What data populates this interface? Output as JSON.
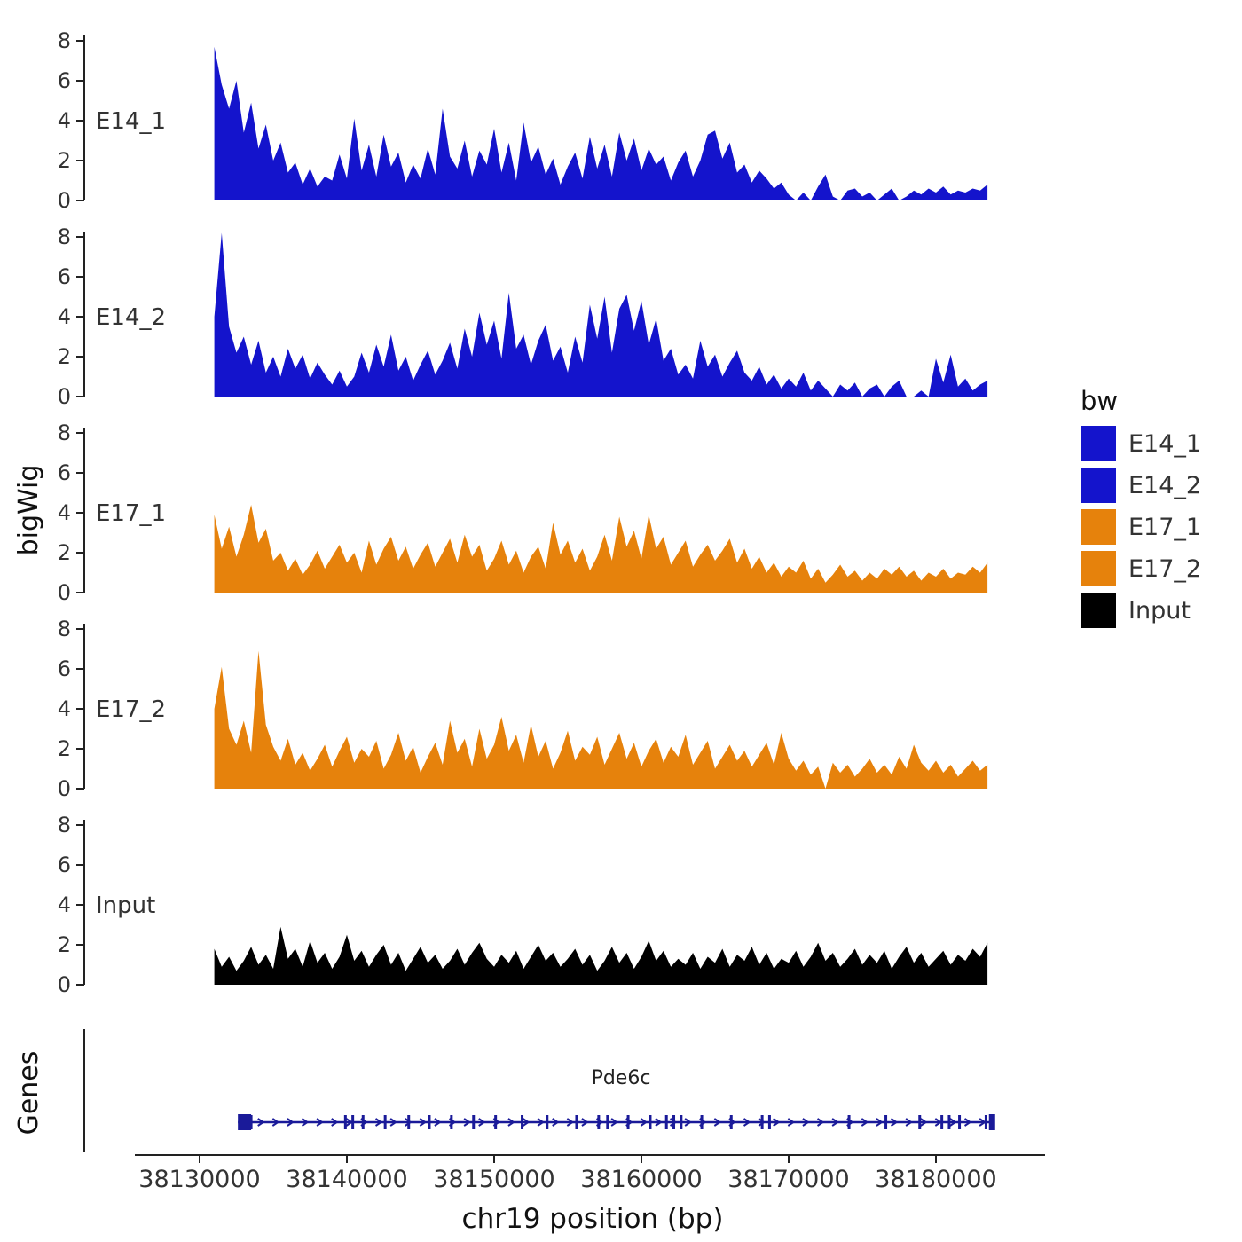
{
  "figure": {
    "ylabel": "bigWig",
    "genes_label": "Genes",
    "xlabel": "chr19 position (bp)",
    "legend_title": "bw",
    "gene_name": "Pde6c"
  },
  "colors": {
    "blue": "#1414CC",
    "orange": "#E6820C",
    "black": "#000000",
    "gene": "#1A1A99",
    "axis": "#222222",
    "tick_text": "#333333"
  },
  "chart_data": {
    "type": "area",
    "title": "",
    "xlabel": "chr19 position (bp)",
    "ylabel": "bigWig",
    "x_start": 38131000,
    "x_step": 500,
    "xlim": [
      38126000,
      38187000
    ],
    "ylim": [
      0,
      8.5
    ],
    "y_ticks": [
      0,
      2,
      4,
      6,
      8
    ],
    "x_ticks": [
      38130000,
      38140000,
      38150000,
      38160000,
      38170000,
      38180000
    ],
    "legend_position": "right",
    "grid": false,
    "series": [
      {
        "name": "E14_1",
        "color": "#1414CC",
        "values": [
          7.7,
          5.8,
          4.6,
          6.0,
          3.4,
          4.9,
          2.6,
          3.8,
          2.0,
          2.9,
          1.4,
          1.9,
          0.8,
          1.6,
          0.7,
          1.2,
          1.0,
          2.3,
          1.1,
          4.1,
          1.5,
          2.8,
          1.2,
          3.3,
          1.7,
          2.4,
          0.9,
          1.8,
          1.1,
          2.6,
          1.3,
          4.6,
          2.2,
          1.6,
          3.0,
          1.2,
          2.5,
          1.8,
          3.6,
          1.4,
          2.9,
          1.0,
          3.9,
          1.9,
          2.7,
          1.3,
          2.1,
          0.8,
          1.7,
          2.4,
          1.1,
          3.2,
          1.6,
          2.8,
          1.2,
          3.4,
          2.0,
          3.1,
          1.5,
          2.6,
          1.8,
          2.2,
          1.0,
          1.9,
          2.5,
          1.2,
          2.0,
          3.3,
          3.5,
          2.1,
          2.9,
          1.4,
          1.8,
          0.9,
          1.5,
          1.1,
          0.6,
          0.9,
          0.3,
          0.0,
          0.4,
          0.0,
          0.7,
          1.3,
          0.2,
          0.0,
          0.5,
          0.6,
          0.2,
          0.4,
          0.0,
          0.3,
          0.6,
          0.0,
          0.2,
          0.5,
          0.3,
          0.6,
          0.4,
          0.7,
          0.3,
          0.5,
          0.4,
          0.6,
          0.5,
          0.8
        ]
      },
      {
        "name": "E14_2",
        "color": "#1414CC",
        "values": [
          4.0,
          8.2,
          3.5,
          2.2,
          3.0,
          1.6,
          2.8,
          1.2,
          2.0,
          1.0,
          2.4,
          1.4,
          2.1,
          0.9,
          1.7,
          1.1,
          0.6,
          1.3,
          0.5,
          1.0,
          2.2,
          1.2,
          2.6,
          1.5,
          3.1,
          1.3,
          2.0,
          0.8,
          1.6,
          2.3,
          1.1,
          1.8,
          2.7,
          1.4,
          3.4,
          2.0,
          4.2,
          2.6,
          3.8,
          1.9,
          5.2,
          2.4,
          3.1,
          1.6,
          2.8,
          3.6,
          1.8,
          2.5,
          1.2,
          3.0,
          1.7,
          4.6,
          2.9,
          5.0,
          2.2,
          4.4,
          5.1,
          3.3,
          4.8,
          2.6,
          3.9,
          1.8,
          2.4,
          1.1,
          1.6,
          0.9,
          2.8,
          1.5,
          2.1,
          1.0,
          1.7,
          2.3,
          1.2,
          0.8,
          1.5,
          0.6,
          1.1,
          0.4,
          0.9,
          0.5,
          1.2,
          0.3,
          0.8,
          0.4,
          0.0,
          0.6,
          0.3,
          0.7,
          0.0,
          0.4,
          0.6,
          0.0,
          0.5,
          0.8,
          0.0,
          0.0,
          0.3,
          0.0,
          1.9,
          0.7,
          2.1,
          0.5,
          0.9,
          0.3,
          0.6,
          0.8
        ]
      },
      {
        "name": "E17_1",
        "color": "#E6820C",
        "values": [
          3.9,
          2.2,
          3.3,
          1.8,
          2.9,
          4.4,
          2.5,
          3.2,
          1.6,
          2.0,
          1.1,
          1.7,
          0.9,
          1.4,
          2.1,
          1.2,
          1.8,
          2.4,
          1.5,
          2.0,
          1.0,
          2.6,
          1.4,
          2.2,
          2.8,
          1.6,
          2.3,
          1.2,
          1.9,
          2.5,
          1.3,
          2.0,
          2.7,
          1.5,
          2.9,
          1.8,
          2.4,
          1.1,
          1.7,
          2.6,
          1.4,
          2.1,
          1.0,
          1.8,
          2.3,
          1.2,
          3.5,
          1.9,
          2.6,
          1.5,
          2.2,
          1.1,
          1.8,
          2.9,
          1.6,
          3.8,
          2.3,
          3.1,
          1.7,
          3.9,
          2.2,
          2.8,
          1.4,
          2.0,
          2.6,
          1.3,
          1.9,
          2.4,
          1.6,
          2.1,
          2.7,
          1.5,
          2.2,
          1.2,
          1.8,
          1.0,
          1.5,
          0.8,
          1.3,
          1.0,
          1.6,
          0.7,
          1.2,
          0.5,
          0.9,
          1.4,
          0.8,
          1.1,
          0.6,
          1.0,
          0.7,
          1.2,
          0.9,
          1.3,
          0.8,
          1.1,
          0.6,
          1.0,
          0.8,
          1.2,
          0.7,
          1.0,
          0.9,
          1.3,
          1.0,
          1.5
        ]
      },
      {
        "name": "E17_2",
        "color": "#E6820C",
        "values": [
          4.0,
          6.1,
          3.0,
          2.2,
          3.4,
          1.8,
          6.9,
          3.2,
          2.1,
          1.4,
          2.5,
          1.2,
          1.8,
          0.9,
          1.5,
          2.2,
          1.1,
          1.9,
          2.6,
          1.3,
          2.0,
          1.6,
          2.4,
          1.0,
          1.7,
          2.8,
          1.4,
          2.1,
          0.8,
          1.6,
          2.3,
          1.2,
          3.4,
          1.8,
          2.5,
          1.1,
          3.0,
          1.5,
          2.2,
          3.6,
          1.9,
          2.7,
          1.3,
          3.2,
          1.6,
          2.4,
          1.0,
          1.8,
          2.9,
          1.4,
          2.1,
          1.7,
          2.6,
          1.2,
          2.0,
          2.8,
          1.5,
          2.3,
          1.1,
          1.9,
          2.5,
          1.3,
          2.1,
          1.6,
          2.7,
          1.2,
          1.8,
          2.4,
          1.0,
          1.6,
          2.2,
          1.4,
          1.9,
          1.1,
          1.7,
          2.3,
          1.2,
          2.8,
          1.5,
          0.9,
          1.4,
          0.7,
          1.1,
          0.0,
          1.3,
          0.8,
          1.2,
          0.6,
          1.0,
          1.5,
          0.8,
          1.2,
          0.7,
          1.6,
          1.0,
          2.2,
          1.3,
          0.9,
          1.4,
          0.8,
          1.2,
          0.6,
          1.0,
          1.4,
          0.9,
          1.2
        ]
      },
      {
        "name": "Input",
        "color": "#000000",
        "values": [
          1.8,
          0.9,
          1.4,
          0.7,
          1.2,
          1.9,
          1.0,
          1.5,
          0.8,
          2.9,
          1.3,
          1.8,
          0.9,
          2.2,
          1.1,
          1.6,
          0.8,
          1.4,
          2.5,
          1.2,
          1.7,
          0.9,
          1.5,
          2.0,
          1.0,
          1.6,
          0.7,
          1.3,
          1.9,
          1.1,
          1.5,
          0.8,
          1.2,
          1.8,
          1.0,
          1.6,
          2.1,
          1.3,
          0.9,
          1.5,
          1.1,
          1.7,
          0.8,
          1.4,
          2.0,
          1.2,
          1.6,
          0.9,
          1.3,
          1.8,
          1.0,
          1.5,
          0.7,
          1.2,
          1.9,
          1.1,
          1.6,
          0.8,
          1.4,
          2.2,
          1.2,
          1.7,
          0.9,
          1.3,
          1.0,
          1.6,
          0.8,
          1.4,
          1.1,
          1.8,
          0.9,
          1.5,
          1.2,
          1.9,
          1.0,
          1.6,
          0.8,
          1.3,
          1.1,
          1.7,
          0.9,
          1.4,
          2.1,
          1.2,
          1.6,
          0.9,
          1.3,
          1.8,
          1.0,
          1.5,
          1.1,
          1.7,
          0.8,
          1.4,
          1.9,
          1.1,
          1.6,
          0.9,
          1.3,
          1.7,
          1.0,
          1.5,
          1.2,
          1.8,
          1.4,
          2.1
        ]
      }
    ],
    "legend_entries": [
      {
        "label": "E14_1",
        "color": "#1414CC"
      },
      {
        "label": "E14_2",
        "color": "#1414CC"
      },
      {
        "label": "E17_1",
        "color": "#E6820C"
      },
      {
        "label": "E17_2",
        "color": "#E6820C"
      },
      {
        "label": "Input",
        "color": "#000000"
      }
    ],
    "gene_track": {
      "name": "Pde6c",
      "start": 38132600,
      "end": 38184000,
      "strand": "+",
      "first_exon": {
        "start": 38132600,
        "end": 38133500
      },
      "last_exon": {
        "start": 38183600,
        "end": 38184000
      },
      "exons": [
        38133500,
        38139900,
        38140400,
        38141100,
        38142600,
        38144200,
        38145600,
        38147100,
        38148600,
        38150100,
        38151900,
        38153600,
        38155600,
        38157100,
        38157700,
        38159100,
        38160600,
        38161700,
        38162200,
        38162700,
        38164100,
        38166100,
        38168200,
        38168700,
        38174100,
        38176600,
        38178900,
        38180400,
        38180900,
        38181600,
        38183400
      ]
    }
  }
}
